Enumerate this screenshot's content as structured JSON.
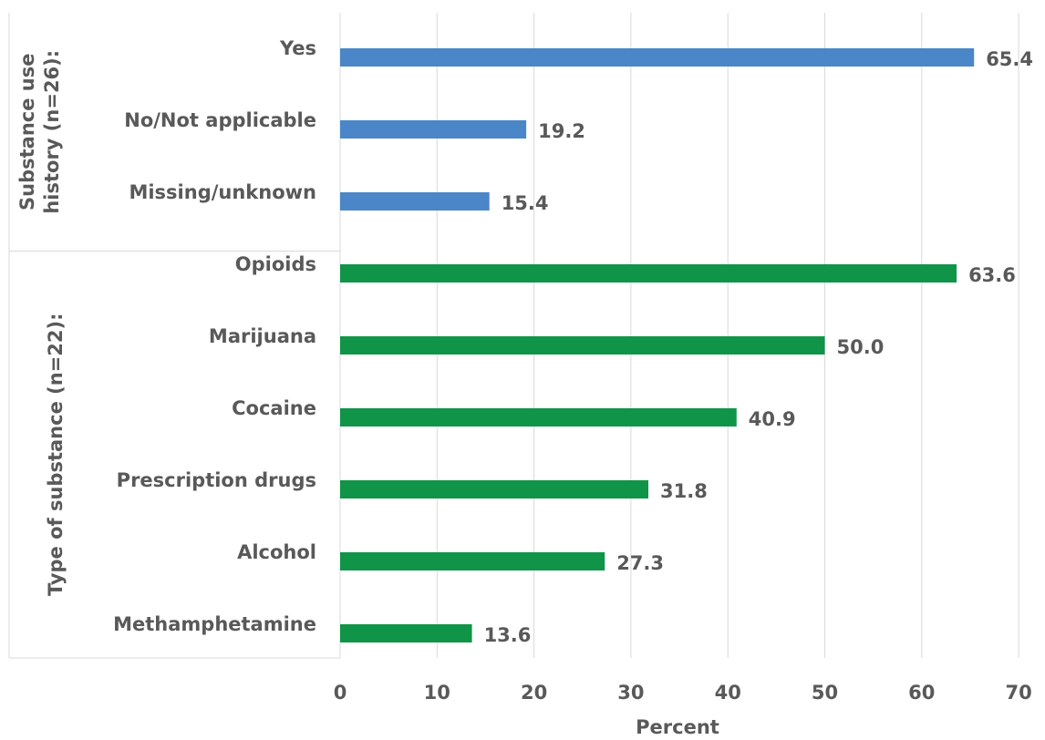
{
  "chart_data": {
    "type": "bar",
    "orientation": "horizontal",
    "xlabel": "Percent",
    "xlim": [
      0,
      70
    ],
    "xticks": [
      0,
      10,
      20,
      30,
      40,
      50,
      60,
      70
    ],
    "grid": "vertical",
    "groups": [
      {
        "label": "Substance use history (n=26):",
        "color": "#4a86c8",
        "categories": [
          "Yes",
          "No/Not applicable",
          "Missing/unknown"
        ],
        "values": [
          65.4,
          19.2,
          15.4
        ],
        "value_labels": [
          "65.4",
          "19.2",
          "15.4"
        ]
      },
      {
        "label": "Type of substance (n=22):",
        "color": "#109448",
        "categories": [
          "Opioids",
          "Marijuana",
          "Cocaine",
          "Prescription drugs",
          "Alcohol",
          "Methamphetamine"
        ],
        "values": [
          63.6,
          50.0,
          40.9,
          31.8,
          27.3,
          13.6
        ],
        "value_labels": [
          "63.6",
          "50.0",
          "40.9",
          "31.8",
          "27.3",
          "13.6"
        ]
      }
    ]
  }
}
